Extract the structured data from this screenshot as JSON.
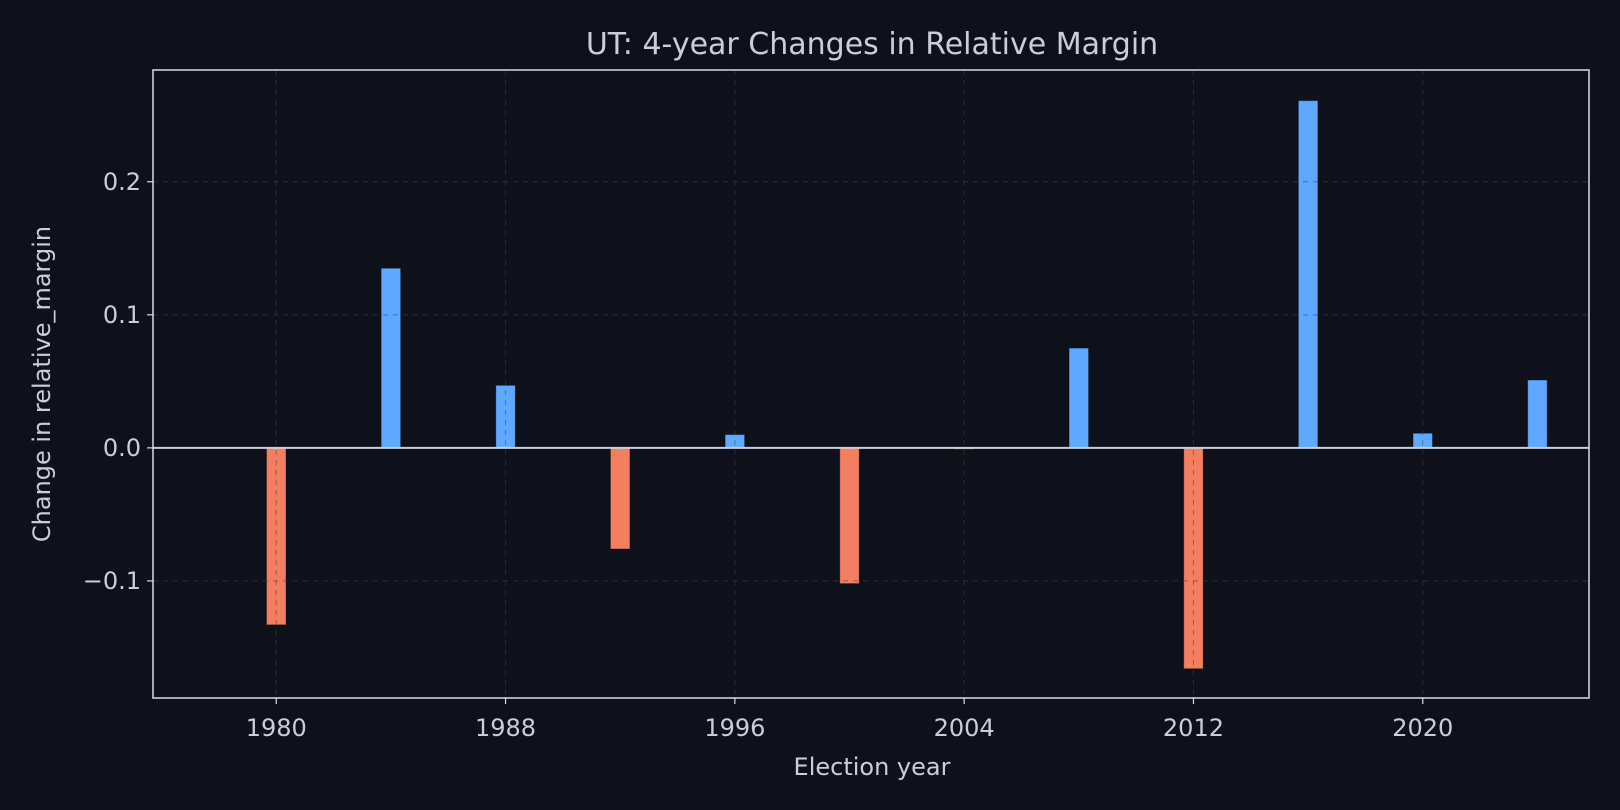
{
  "chart_data": {
    "type": "bar",
    "title": "UT: 4-year Changes in Relative Margin",
    "xlabel": "Election year",
    "ylabel": "Change in relative_margin",
    "x": [
      1980,
      1984,
      1988,
      1992,
      1996,
      2000,
      2004,
      2008,
      2012,
      2016,
      2020,
      2024
    ],
    "values": [
      -0.133,
      0.135,
      0.047,
      -0.076,
      0.01,
      -0.102,
      -0.001,
      0.075,
      -0.166,
      0.261,
      0.011,
      0.051
    ],
    "xlim": [
      1975.7,
      2025.8
    ],
    "ylim": [
      -0.188,
      0.284
    ],
    "xticks": [
      1980,
      1988,
      1996,
      2004,
      2012,
      2020
    ],
    "xtick_labels": [
      "1980",
      "1988",
      "1996",
      "2004",
      "2012",
      "2020"
    ],
    "yticks": [
      -0.1,
      0.0,
      0.1,
      0.2
    ],
    "ytick_labels": [
      "−0.1",
      "0.0",
      "0.1",
      "0.2"
    ],
    "grid": true,
    "colors": {
      "background": "#0e111a",
      "positive": "#5ea8ff",
      "negative": "#f47e60",
      "zero_line": "#c9ced8",
      "text": "#c9ced8",
      "frame": "#d8dce4",
      "grid": "#2a2f3a"
    }
  }
}
